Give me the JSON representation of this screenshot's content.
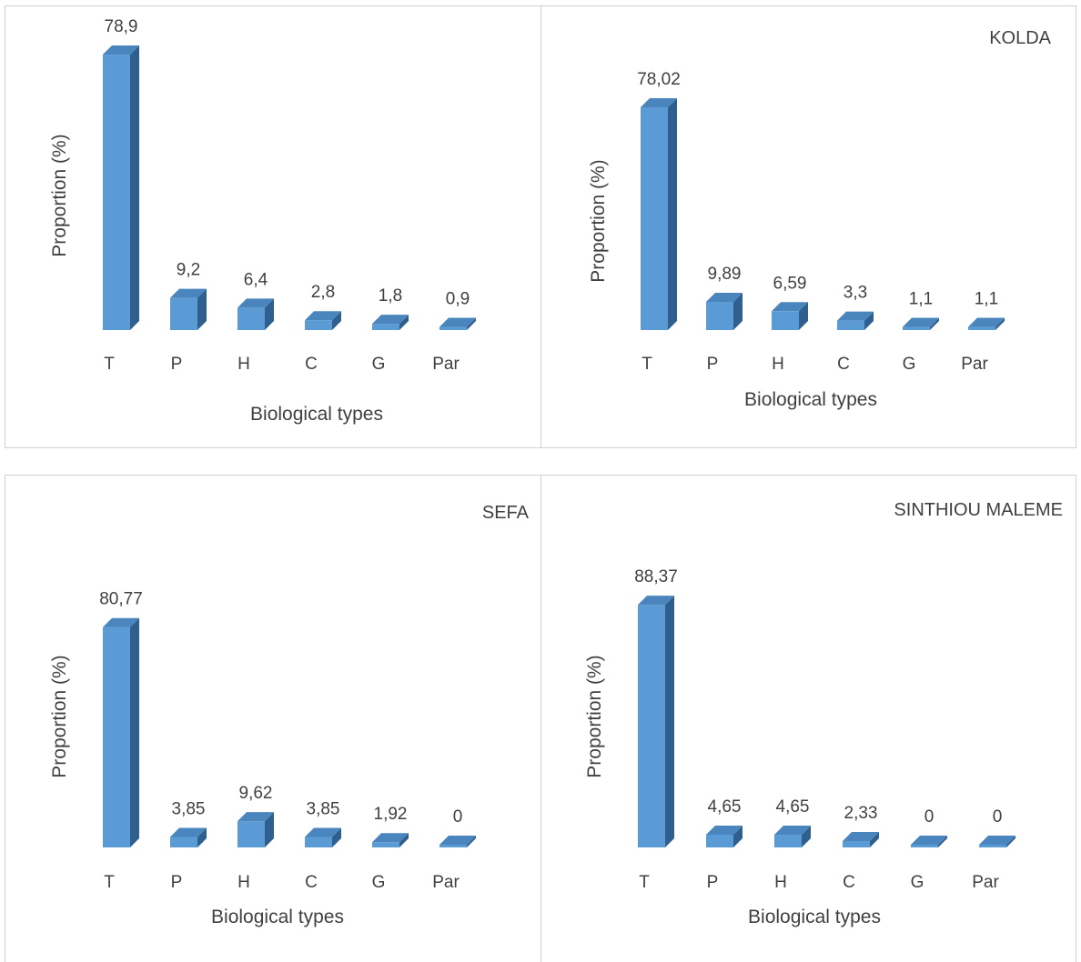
{
  "colors": {
    "bar_front": "#5b9bd5",
    "bar_top": "#4a85bd",
    "bar_side": "#2f5f8e",
    "text": "#404040",
    "frame": "#d0d0d0"
  },
  "chart_data": [
    {
      "type": "bar",
      "title": "",
      "xlabel": "Biological types",
      "ylabel": "Proportion (%)",
      "categories": [
        "T",
        "P",
        "H",
        "C",
        "G",
        "Par"
      ],
      "values": [
        78.9,
        9.2,
        6.4,
        2.8,
        1.8,
        0.9
      ],
      "value_labels": [
        "78,9",
        "9,2",
        "6,4",
        "2,8",
        "1,8",
        "0,9"
      ],
      "ylim": [
        0,
        80
      ],
      "grid": false,
      "style": "3d-column"
    },
    {
      "type": "bar",
      "title": "KOLDA",
      "xlabel": "Biological types",
      "ylabel": "Proportion (%)",
      "categories": [
        "T",
        "P",
        "H",
        "C",
        "G",
        "Par"
      ],
      "values": [
        78.02,
        9.89,
        6.59,
        3.3,
        1.1,
        1.1
      ],
      "value_labels": [
        "78,02",
        "9,89",
        "6,59",
        "3,3",
        "1,1",
        "1,1"
      ],
      "ylim": [
        0,
        80
      ],
      "grid": false,
      "style": "3d-column"
    },
    {
      "type": "bar",
      "title": "SEFA",
      "xlabel": "Biological types",
      "ylabel": "Proportion (%)",
      "categories": [
        "T",
        "P",
        "H",
        "C",
        "G",
        "Par"
      ],
      "values": [
        80.77,
        3.85,
        9.62,
        3.85,
        1.92,
        0
      ],
      "value_labels": [
        "80,77",
        "3,85",
        "9,62",
        "3,85",
        "1,92",
        "0"
      ],
      "ylim": [
        0,
        80
      ],
      "grid": false,
      "style": "3d-column"
    },
    {
      "type": "bar",
      "title": "SINTHIOU MALEME",
      "xlabel": "Biological types",
      "ylabel": "Proportion (%)",
      "categories": [
        "T",
        "P",
        "H",
        "C",
        "G",
        "Par"
      ],
      "values": [
        88.37,
        4.65,
        4.65,
        2.33,
        0,
        0
      ],
      "value_labels": [
        "88,37",
        "4,65",
        "4,65",
        "2,33",
        "0",
        "0"
      ],
      "ylim": [
        0,
        90
      ],
      "grid": false,
      "style": "3d-column"
    }
  ]
}
